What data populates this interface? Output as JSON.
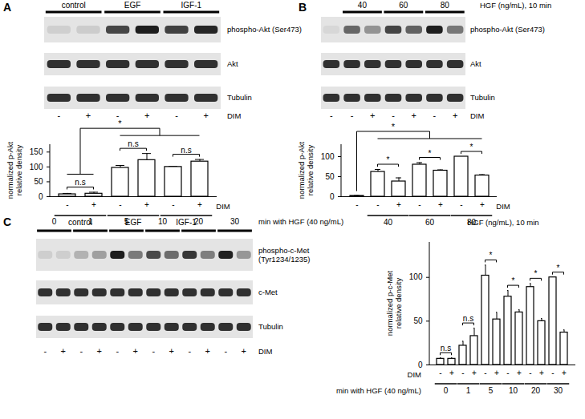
{
  "chart_data": [
    {
      "type": "bar",
      "ylabel": [
        "normalized p-Akt",
        "relative density"
      ],
      "categories": [
        "-",
        "+",
        "-",
        "+",
        "-",
        "+"
      ],
      "groups": [
        "control",
        "control",
        "EGF",
        "EGF",
        "IGF-1",
        "IGF-1"
      ],
      "category_title": "DIM",
      "values": [
        8,
        10,
        97,
        123,
        100,
        118
      ],
      "errors": [
        3,
        5,
        8,
        22,
        2,
        7
      ],
      "ylim": [
        0,
        175
      ],
      "yticks": [
        0,
        50,
        100,
        150
      ],
      "color": "#ffffff",
      "annotations": [
        {
          "text": "n.s",
          "bars": [
            0,
            1
          ]
        },
        {
          "text": "n.s",
          "bars": [
            2,
            3
          ]
        },
        {
          "text": "n.s",
          "bars": [
            4,
            5
          ]
        },
        {
          "text": "*",
          "from": [
            0,
            1
          ],
          "to": [
            2,
            5
          ]
        }
      ]
    },
    {
      "type": "bar",
      "ylabel": [
        "normalized p-Akt",
        "relative density"
      ],
      "categories": [
        "-",
        "-",
        "+",
        "-",
        "+",
        "-",
        "+"
      ],
      "groups": [
        null,
        "40",
        "40",
        "60",
        "60",
        "80",
        "80"
      ],
      "category_title": "DIM",
      "group_title": "HGF (ng/mL), 10 min",
      "values": [
        2,
        62,
        38,
        80,
        65,
        100,
        53
      ],
      "errors": [
        1,
        6,
        9,
        5,
        2,
        0,
        2
      ],
      "ylim": [
        0,
        130
      ],
      "yticks": [
        0,
        50,
        100
      ],
      "color": "#ffffff",
      "annotations": [
        {
          "text": "*",
          "bars": [
            1,
            2
          ]
        },
        {
          "text": "*",
          "bars": [
            3,
            4
          ]
        },
        {
          "text": "*",
          "bars": [
            5,
            6
          ]
        },
        {
          "text": "*",
          "from": [
            0,
            0
          ],
          "to": [
            1,
            6
          ]
        }
      ]
    },
    {
      "type": "bar",
      "ylabel": [
        "normalized p-c-Met",
        "relative density"
      ],
      "categories": [
        "-",
        "+",
        "-",
        "+",
        "-",
        "+",
        "-",
        "+",
        "-",
        "+",
        "-",
        "+"
      ],
      "groups": [
        "0",
        "0",
        "1",
        "1",
        "5",
        "5",
        "10",
        "10",
        "20",
        "20",
        "30",
        "30"
      ],
      "category_title": "DIM",
      "group_title": "min with HGF (40 ng/mL)",
      "values": [
        7,
        7,
        22,
        33,
        102,
        52,
        78,
        60,
        89,
        50,
        100,
        37
      ],
      "errors": [
        1,
        1,
        5,
        9,
        12,
        8,
        7,
        3,
        4,
        3,
        0,
        3
      ],
      "ylim": [
        0,
        140
      ],
      "yticks": [
        0,
        50,
        100
      ],
      "color": "#ffffff",
      "annotations": [
        {
          "text": "n.s",
          "bars": [
            0,
            1
          ]
        },
        {
          "text": "n.s",
          "bars": [
            2,
            3
          ]
        },
        {
          "text": "*",
          "bars": [
            4,
            5
          ]
        },
        {
          "text": "*",
          "bars": [
            6,
            7
          ]
        },
        {
          "text": "*",
          "bars": [
            8,
            9
          ]
        },
        {
          "text": "*",
          "bars": [
            10,
            11
          ]
        }
      ]
    }
  ],
  "blots": [
    {
      "panel": "A",
      "groups": [
        "control",
        "control",
        "EGF",
        "EGF",
        "IGF-1",
        "IGF-1"
      ],
      "rows": [
        [
          "phospho-Akt (Ser473)"
        ],
        [
          "Akt"
        ],
        [
          "Tubulin"
        ]
      ],
      "lanes": [
        "-",
        "+",
        "-",
        "+",
        "-",
        "+"
      ],
      "lane_title": "DIM"
    },
    {
      "panel": "B",
      "groups": [
        null,
        "40",
        "40",
        "60",
        "60",
        "80",
        "80"
      ],
      "group_title": "HGF (ng/mL), 10 min",
      "rows": [
        [
          "phospho-Akt (Ser473)"
        ],
        [
          "Akt"
        ],
        [
          "Tubulin"
        ]
      ],
      "lanes": [
        "-",
        "-",
        "+",
        "-",
        "+",
        "-",
        "+"
      ],
      "lane_title": "DIM"
    },
    {
      "panel": "C",
      "groups": [
        "0",
        "0",
        "1",
        "1",
        "5",
        "5",
        "10",
        "10",
        "20",
        "20",
        "30",
        "30"
      ],
      "group_title": "min with HGF (40 ng/mL)",
      "rows": [
        [
          "phospho-c-Met",
          "(Tyr1234/1235)"
        ],
        [
          "c-Met"
        ],
        [
          "Tubulin"
        ]
      ],
      "lanes": [
        "-",
        "+",
        "-",
        "+",
        "-",
        "+",
        "-",
        "+",
        "-",
        "+",
        "-",
        "+"
      ],
      "lane_title": "DIM"
    }
  ]
}
